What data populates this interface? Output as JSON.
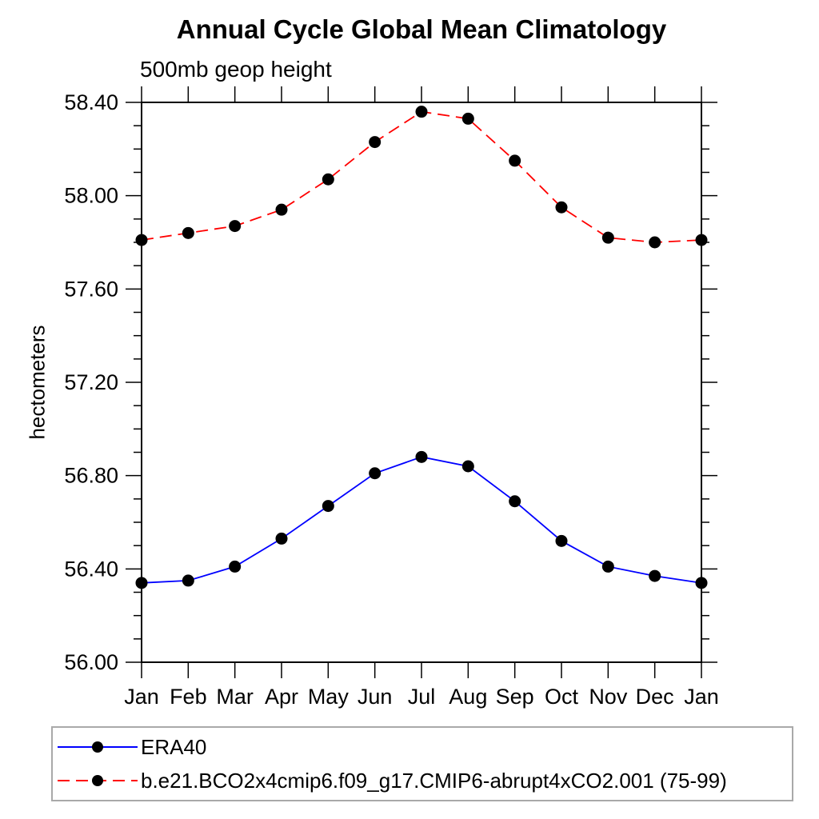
{
  "title": "Annual Cycle Global Mean Climatology",
  "subtitle": "500mb geop height",
  "ylabel": "hectometers",
  "colors": {
    "axis": "#000000",
    "background": "#ffffff",
    "legend_border": "#a9a9a9",
    "series1": "#0000ff",
    "series2": "#ff0000",
    "marker": "#000000"
  },
  "chart_data": {
    "type": "line",
    "title": "Annual Cycle Global Mean Climatology",
    "subtitle": "500mb geop height",
    "xlabel": "",
    "ylabel": "hectometers",
    "categories": [
      "Jan",
      "Feb",
      "Mar",
      "Apr",
      "May",
      "Jun",
      "Jul",
      "Aug",
      "Sep",
      "Oct",
      "Nov",
      "Dec",
      "Jan"
    ],
    "ylim": [
      56.0,
      58.4
    ],
    "ytick_major_step": 0.4,
    "ytick_minor_step": 0.1,
    "ytick_labels": [
      "56.00",
      "56.40",
      "56.80",
      "57.20",
      "57.60",
      "58.00",
      "58.40"
    ],
    "grid": false,
    "legend_position": "bottom",
    "series": [
      {
        "name": "ERA40",
        "color": "#0000ff",
        "line_style": "solid",
        "marker": "filled-circle",
        "marker_color": "#000000",
        "values": [
          56.34,
          56.35,
          56.41,
          56.53,
          56.67,
          56.81,
          56.88,
          56.84,
          56.69,
          56.52,
          56.41,
          56.37,
          56.34
        ]
      },
      {
        "name": "b.e21.BCO2x4cmip6.f09_g17.CMIP6-abrupt4xCO2.001 (75-99)",
        "color": "#ff0000",
        "line_style": "dashed",
        "marker": "filled-circle",
        "marker_color": "#000000",
        "values": [
          57.81,
          57.84,
          57.87,
          57.94,
          58.07,
          58.23,
          58.36,
          58.33,
          58.15,
          57.95,
          57.82,
          57.8,
          57.81
        ]
      }
    ]
  }
}
